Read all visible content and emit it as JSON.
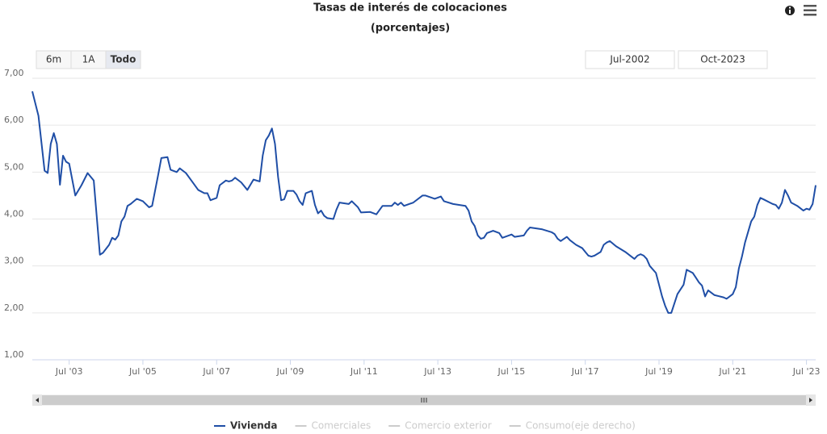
{
  "chart_data": {
    "type": "line",
    "title": "Tasas de interés de colocaciones",
    "subtitle": "(porcentajes)",
    "x": [
      "2002-07",
      "2002-09",
      "2002-11",
      "2002-12",
      "2003-01",
      "2003-02",
      "2003-03",
      "2003-04",
      "2003-05",
      "2003-06",
      "2003-07",
      "2003-09",
      "2003-11",
      "2004-01",
      "2004-03",
      "2004-05",
      "2004-06",
      "2004-08",
      "2004-09",
      "2004-10",
      "2004-11",
      "2004-12",
      "2005-01",
      "2005-02",
      "2005-03",
      "2005-05",
      "2005-07",
      "2005-09",
      "2005-10",
      "2005-12",
      "2006-01",
      "2006-03",
      "2006-04",
      "2006-06",
      "2006-07",
      "2006-09",
      "2006-11",
      "2007-01",
      "2007-03",
      "2007-04",
      "2007-05",
      "2007-07",
      "2007-08",
      "2007-10",
      "2007-11",
      "2007-12",
      "2008-01",
      "2008-03",
      "2008-05",
      "2008-07",
      "2008-09",
      "2008-10",
      "2008-11",
      "2008-12",
      "2009-01",
      "2009-02",
      "2009-03",
      "2009-04",
      "2009-05",
      "2009-06",
      "2009-08",
      "2009-09",
      "2009-10",
      "2009-11",
      "2009-12",
      "2010-02",
      "2010-03",
      "2010-04",
      "2010-05",
      "2010-06",
      "2010-07",
      "2010-09",
      "2010-10",
      "2010-11",
      "2011-02",
      "2011-03",
      "2011-05",
      "2011-06",
      "2011-09",
      "2011-11",
      "2012-01",
      "2012-04",
      "2012-05",
      "2012-06",
      "2012-07",
      "2012-08",
      "2012-11",
      "2013-02",
      "2013-03",
      "2013-06",
      "2013-08",
      "2013-09",
      "2013-12",
      "2014-04",
      "2014-05",
      "2014-06",
      "2014-07",
      "2014-08",
      "2014-09",
      "2014-10",
      "2014-11",
      "2015-01",
      "2015-03",
      "2015-04",
      "2015-07",
      "2015-08",
      "2015-11",
      "2015-12",
      "2016-01",
      "2016-05",
      "2016-08",
      "2016-09",
      "2016-10",
      "2016-11",
      "2017-01",
      "2017-02",
      "2017-04",
      "2017-06",
      "2017-07",
      "2017-08",
      "2017-09",
      "2017-10",
      "2017-12",
      "2018-01",
      "2018-02",
      "2018-03",
      "2018-05",
      "2018-08",
      "2018-10",
      "2018-11",
      "2018-12",
      "2019-01",
      "2019-02",
      "2019-03",
      "2019-04",
      "2019-06",
      "2019-07",
      "2019-08",
      "2019-09",
      "2019-10",
      "2019-11",
      "2019-12",
      "2020-01",
      "2020-03",
      "2020-04",
      "2020-06",
      "2020-07",
      "2020-08",
      "2020-09",
      "2020-10",
      "2020-11",
      "2021-01",
      "2021-04",
      "2021-05",
      "2021-07",
      "2021-08",
      "2021-09",
      "2021-10",
      "2021-11",
      "2022-01",
      "2022-02",
      "2022-03",
      "2022-04",
      "2022-05",
      "2022-08",
      "2022-09",
      "2022-10",
      "2022-11",
      "2022-12",
      "2023-01",
      "2023-02",
      "2023-04",
      "2023-06",
      "2023-07",
      "2023-08",
      "2023-09",
      "2023-10"
    ],
    "series": [
      {
        "name": "Vivienda",
        "color": "#1f4ea6",
        "values": [
          6.72,
          6.2,
          5.03,
          4.98,
          5.6,
          5.83,
          5.6,
          4.73,
          5.35,
          5.22,
          5.18,
          4.5,
          4.72,
          4.98,
          4.82,
          3.24,
          3.28,
          3.45,
          3.6,
          3.56,
          3.65,
          3.95,
          4.05,
          4.28,
          4.32,
          4.43,
          4.38,
          4.25,
          4.28,
          4.95,
          5.3,
          5.32,
          5.05,
          5.0,
          5.08,
          4.98,
          4.8,
          4.62,
          4.55,
          4.55,
          4.4,
          4.45,
          4.72,
          4.82,
          4.8,
          4.82,
          4.88,
          4.78,
          4.62,
          4.84,
          4.8,
          5.35,
          5.68,
          5.78,
          5.93,
          5.6,
          4.9,
          4.4,
          4.42,
          4.6,
          4.6,
          4.52,
          4.38,
          4.3,
          4.55,
          4.6,
          4.3,
          4.12,
          4.18,
          4.07,
          4.02,
          4.0,
          4.2,
          4.35,
          4.32,
          4.38,
          4.25,
          4.14,
          4.15,
          4.1,
          4.28,
          4.28,
          4.35,
          4.3,
          4.35,
          4.28,
          4.35,
          4.5,
          4.5,
          4.43,
          4.48,
          4.38,
          4.32,
          4.28,
          4.18,
          3.95,
          3.85,
          3.65,
          3.58,
          3.6,
          3.7,
          3.75,
          3.7,
          3.6,
          3.67,
          3.62,
          3.65,
          3.75,
          3.82,
          3.78,
          3.72,
          3.68,
          3.58,
          3.53,
          3.62,
          3.55,
          3.45,
          3.38,
          3.3,
          3.22,
          3.2,
          3.22,
          3.3,
          3.45,
          3.5,
          3.53,
          3.42,
          3.3,
          3.2,
          3.15,
          3.22,
          3.25,
          3.22,
          3.15,
          3.0,
          2.85,
          2.6,
          2.35,
          2.15,
          2.0,
          2.0,
          2.2,
          2.4,
          2.6,
          2.92,
          2.85,
          2.75,
          2.65,
          2.58,
          2.35,
          2.48,
          2.38,
          2.33,
          2.3,
          2.4,
          2.55,
          2.95,
          3.2,
          3.5,
          3.95,
          4.05,
          4.3,
          4.45,
          4.42,
          4.32,
          4.3,
          4.22,
          4.35,
          4.62,
          4.5,
          4.35,
          4.28,
          4.18,
          4.22,
          4.2,
          4.32,
          4.72
        ]
      },
      {
        "name": "Comerciales",
        "color": "#cccccc",
        "visible": false
      },
      {
        "name": "Comercio exterior",
        "color": "#cccccc",
        "visible": false
      },
      {
        "name": "Consumo(eje derecho)",
        "color": "#cccccc",
        "visible": false
      }
    ],
    "xlim": [
      "2002-07",
      "2023-10"
    ],
    "xticks": [
      {
        "value": "2003-07",
        "label": "Jul '03"
      },
      {
        "value": "2005-07",
        "label": "Jul '05"
      },
      {
        "value": "2007-07",
        "label": "Jul '07"
      },
      {
        "value": "2009-07",
        "label": "Jul '09"
      },
      {
        "value": "2011-07",
        "label": "Jul '11"
      },
      {
        "value": "2013-07",
        "label": "Jul '13"
      },
      {
        "value": "2015-07",
        "label": "Jul '15"
      },
      {
        "value": "2017-07",
        "label": "Jul '17"
      },
      {
        "value": "2019-07",
        "label": "Jul '19"
      },
      {
        "value": "2021-07",
        "label": "Jul '21"
      },
      {
        "value": "2023-07",
        "label": "Jul '23"
      }
    ],
    "ylim": [
      1,
      7
    ],
    "yticks": [
      {
        "value": 1,
        "label": "1,00"
      },
      {
        "value": 2,
        "label": "2,00"
      },
      {
        "value": 3,
        "label": "3,00"
      },
      {
        "value": 4,
        "label": "4,00"
      },
      {
        "value": 5,
        "label": "5,00"
      },
      {
        "value": 6,
        "label": "6,00"
      },
      {
        "value": 7,
        "label": "7,00"
      }
    ],
    "grid": true
  },
  "range_selector": {
    "buttons": [
      "6m",
      "1A",
      "Todo"
    ],
    "selected": 2,
    "from": "Jul-2002",
    "to": "Oct-2023"
  }
}
